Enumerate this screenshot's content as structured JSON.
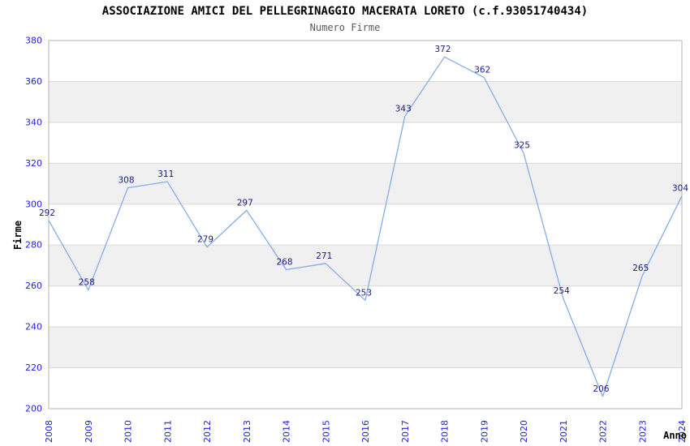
{
  "header": {
    "title": "ASSOCIAZIONE AMICI DEL PELLEGRINAGGIO MACERATA LORETO (c.f.93051740434)",
    "subtitle": "Numero Firme"
  },
  "chart_data": {
    "type": "line",
    "title": "ASSOCIAZIONE AMICI DEL PELLEGRINAGGIO MACERATA LORETO (c.f.93051740434)",
    "subtitle": "Numero Firme",
    "xlabel": "Anno",
    "ylabel": "Firme",
    "x": [
      "2008",
      "2009",
      "2010",
      "2011",
      "2012",
      "2013",
      "2014",
      "2015",
      "2016",
      "2017",
      "2018",
      "2019",
      "2020",
      "2021",
      "2022",
      "2023",
      "2024"
    ],
    "series": [
      {
        "name": "Firme",
        "values": [
          292,
          258,
          308,
          311,
          279,
          297,
          268,
          271,
          253,
          343,
          372,
          362,
          325,
          254,
          206,
          265,
          304
        ]
      }
    ],
    "ylim": [
      200,
      380
    ],
    "ytick_step": 20,
    "yticks": [
      200,
      220,
      240,
      260,
      280,
      300,
      320,
      340,
      360,
      380
    ],
    "grid": "horizontal-alternating-bands",
    "legend": "none",
    "point_labels_visible": true
  },
  "colors": {
    "background": "#ffffff",
    "band_gray": "#f0f0f0",
    "grid_line": "#d9d9d9",
    "frame": "#b4b4b4",
    "line": "#85ade8",
    "tick_label": "#2222dd",
    "point_label": "#1a1a85",
    "axis_label": "#000000",
    "title": "#000000",
    "subtitle": "#5a5a5a"
  }
}
